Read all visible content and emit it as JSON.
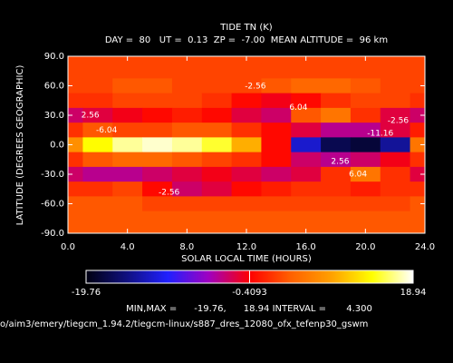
{
  "chart_data": {
    "type": "heatmap",
    "title": "TIDE TN (K)",
    "subtitle": "DAY =  80   UT =  0.13  ZP =  -7.00  MEAN ALTITUDE =  96 km",
    "xlabel": "SOLAR LOCAL TIME (HOURS)",
    "ylabel": "LATITUDE (DEGREES GEOGRAPHIC)",
    "x": [
      0,
      2,
      4,
      6,
      8,
      10,
      12,
      14,
      16,
      18,
      20,
      22,
      24
    ],
    "y": [
      90,
      75,
      60,
      45,
      30,
      15,
      0,
      -15,
      -30,
      -45,
      -60,
      -75,
      -90
    ],
    "z": [
      [
        3,
        3,
        3,
        3,
        3,
        3,
        3,
        3,
        3,
        3,
        3,
        3,
        3
      ],
      [
        3,
        3,
        3,
        3,
        3,
        3,
        3,
        3,
        3,
        3,
        3,
        3,
        3
      ],
      [
        3,
        3,
        4,
        4,
        3,
        3,
        3,
        4,
        5,
        5,
        4,
        3,
        3
      ],
      [
        2,
        2,
        3,
        3,
        3,
        2,
        0,
        -1,
        0,
        2,
        3,
        3,
        2
      ],
      [
        -3,
        -2,
        -1,
        0,
        1,
        0,
        -2,
        -3,
        4,
        6,
        2,
        -2,
        -3
      ],
      [
        2,
        4,
        3,
        3,
        4,
        4,
        2,
        0,
        -2,
        -4,
        -4,
        -2,
        1
      ],
      [
        8,
        14,
        17,
        18,
        17,
        15,
        10,
        0,
        -12,
        -17,
        -18,
        -14,
        6
      ],
      [
        2,
        4,
        5,
        5,
        4,
        3,
        2,
        0,
        -3,
        -4,
        -3,
        -1,
        2
      ],
      [
        -3,
        -4,
        -4,
        -3,
        -2,
        -1,
        -2,
        -3,
        -2,
        2,
        6,
        2,
        -2
      ],
      [
        2,
        2,
        3,
        0,
        -3,
        -2,
        0,
        1,
        2,
        2,
        1,
        2,
        2
      ],
      [
        4,
        4,
        4,
        3,
        3,
        3,
        3,
        3,
        3,
        3,
        3,
        3,
        4
      ],
      [
        4,
        4,
        4,
        4,
        4,
        4,
        4,
        4,
        4,
        4,
        4,
        4,
        4
      ],
      [
        4,
        4,
        4,
        4,
        4,
        4,
        4,
        4,
        4,
        4,
        4,
        4,
        4
      ]
    ],
    "xlim": [
      0,
      24
    ],
    "ylim": [
      -90,
      90
    ],
    "xticks": [
      {
        "value": 0,
        "label": "0.0"
      },
      {
        "value": 4,
        "label": "4.0"
      },
      {
        "value": 8,
        "label": "8.0"
      },
      {
        "value": 12,
        "label": "12.0"
      },
      {
        "value": 16,
        "label": "16.0"
      },
      {
        "value": 20,
        "label": "20.0"
      },
      {
        "value": 24,
        "label": "24.0"
      }
    ],
    "yticks": [
      {
        "value": 90,
        "label": "90.0"
      },
      {
        "value": 60,
        "label": "60.0"
      },
      {
        "value": 30,
        "label": "30.0"
      },
      {
        "value": 0,
        "label": "0.0"
      },
      {
        "value": -30,
        "label": "-30.0"
      },
      {
        "value": -60,
        "label": "-60.0"
      },
      {
        "value": -90,
        "label": "-90.0"
      }
    ],
    "annotations": [
      {
        "text": "-2.56",
        "x": 12.6,
        "y": 59.5
      },
      {
        "text": "2.56",
        "x": 1.5,
        "y": 30
      },
      {
        "text": "6.04",
        "x": 15.5,
        "y": 38
      },
      {
        "text": "-2.56",
        "x": 22.2,
        "y": 24.5
      },
      {
        "text": "-6.04",
        "x": 2.6,
        "y": 15
      },
      {
        "text": "-11.16",
        "x": 21,
        "y": 11.5
      },
      {
        "text": "2.56",
        "x": 18.3,
        "y": -17
      },
      {
        "text": "6.04",
        "x": 19.5,
        "y": -30
      },
      {
        "text": "-2.56",
        "x": 6.8,
        "y": -48.5
      }
    ],
    "colorbar": {
      "lim": [
        -19.76,
        18.94
      ],
      "ticks": [
        -19.76,
        -0.4093,
        18.94
      ],
      "colors": [
        "#000010",
        "#101080",
        "#2020ff",
        "#a000c0",
        "#ff0000",
        "#ff6000",
        "#ffa000",
        "#ffff00",
        "#ffffff"
      ]
    },
    "footer": "MIN,MAX =      -19.76,      18.94 INTERVAL =       4.300",
    "path": "o/aim3/emery/tiegcm_1.94.2/tiegcm-linux/s887_dres_12080_ofx_tefenp30_gswm"
  }
}
